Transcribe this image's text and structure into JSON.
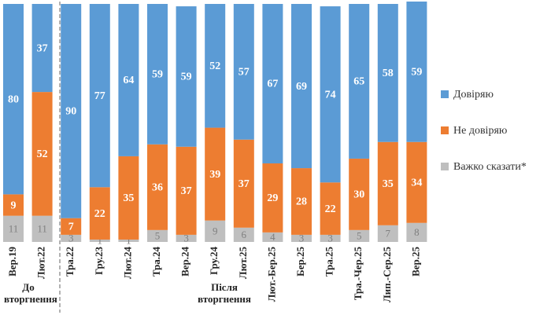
{
  "chart_data": {
    "type": "stacked-bar",
    "categories": [
      "Вер.19",
      "Лют.22",
      "Тра.22",
      "Гру.23",
      "Лют.24",
      "Тра.24",
      "Вер.24",
      "Гру.24",
      "Лют.25",
      "Лют.-Бер.25",
      "Бер.25",
      "Тра.25",
      "Тра.-Чер.25",
      "Лип.-Сер.25",
      "Вер.25"
    ],
    "series": [
      {
        "name": "Важко сказати*",
        "color": "#bfbfbf",
        "values": [
          11,
          11,
          3,
          1,
          1,
          5,
          3,
          9,
          6,
          4,
          3,
          3,
          5,
          7,
          8
        ]
      },
      {
        "name": "Не довіряю",
        "color": "#ed7d31",
        "values": [
          9,
          52,
          7,
          22,
          35,
          36,
          37,
          39,
          37,
          29,
          28,
          22,
          30,
          35,
          34
        ]
      },
      {
        "name": "Довіряю",
        "color": "#5b9bd5",
        "values": [
          80,
          37,
          90,
          77,
          64,
          59,
          59,
          52,
          57,
          67,
          69,
          74,
          65,
          58,
          59
        ]
      }
    ],
    "groups": [
      {
        "label": "До вторгнення"
      },
      {
        "label": "Після вторгнення"
      }
    ]
  }
}
